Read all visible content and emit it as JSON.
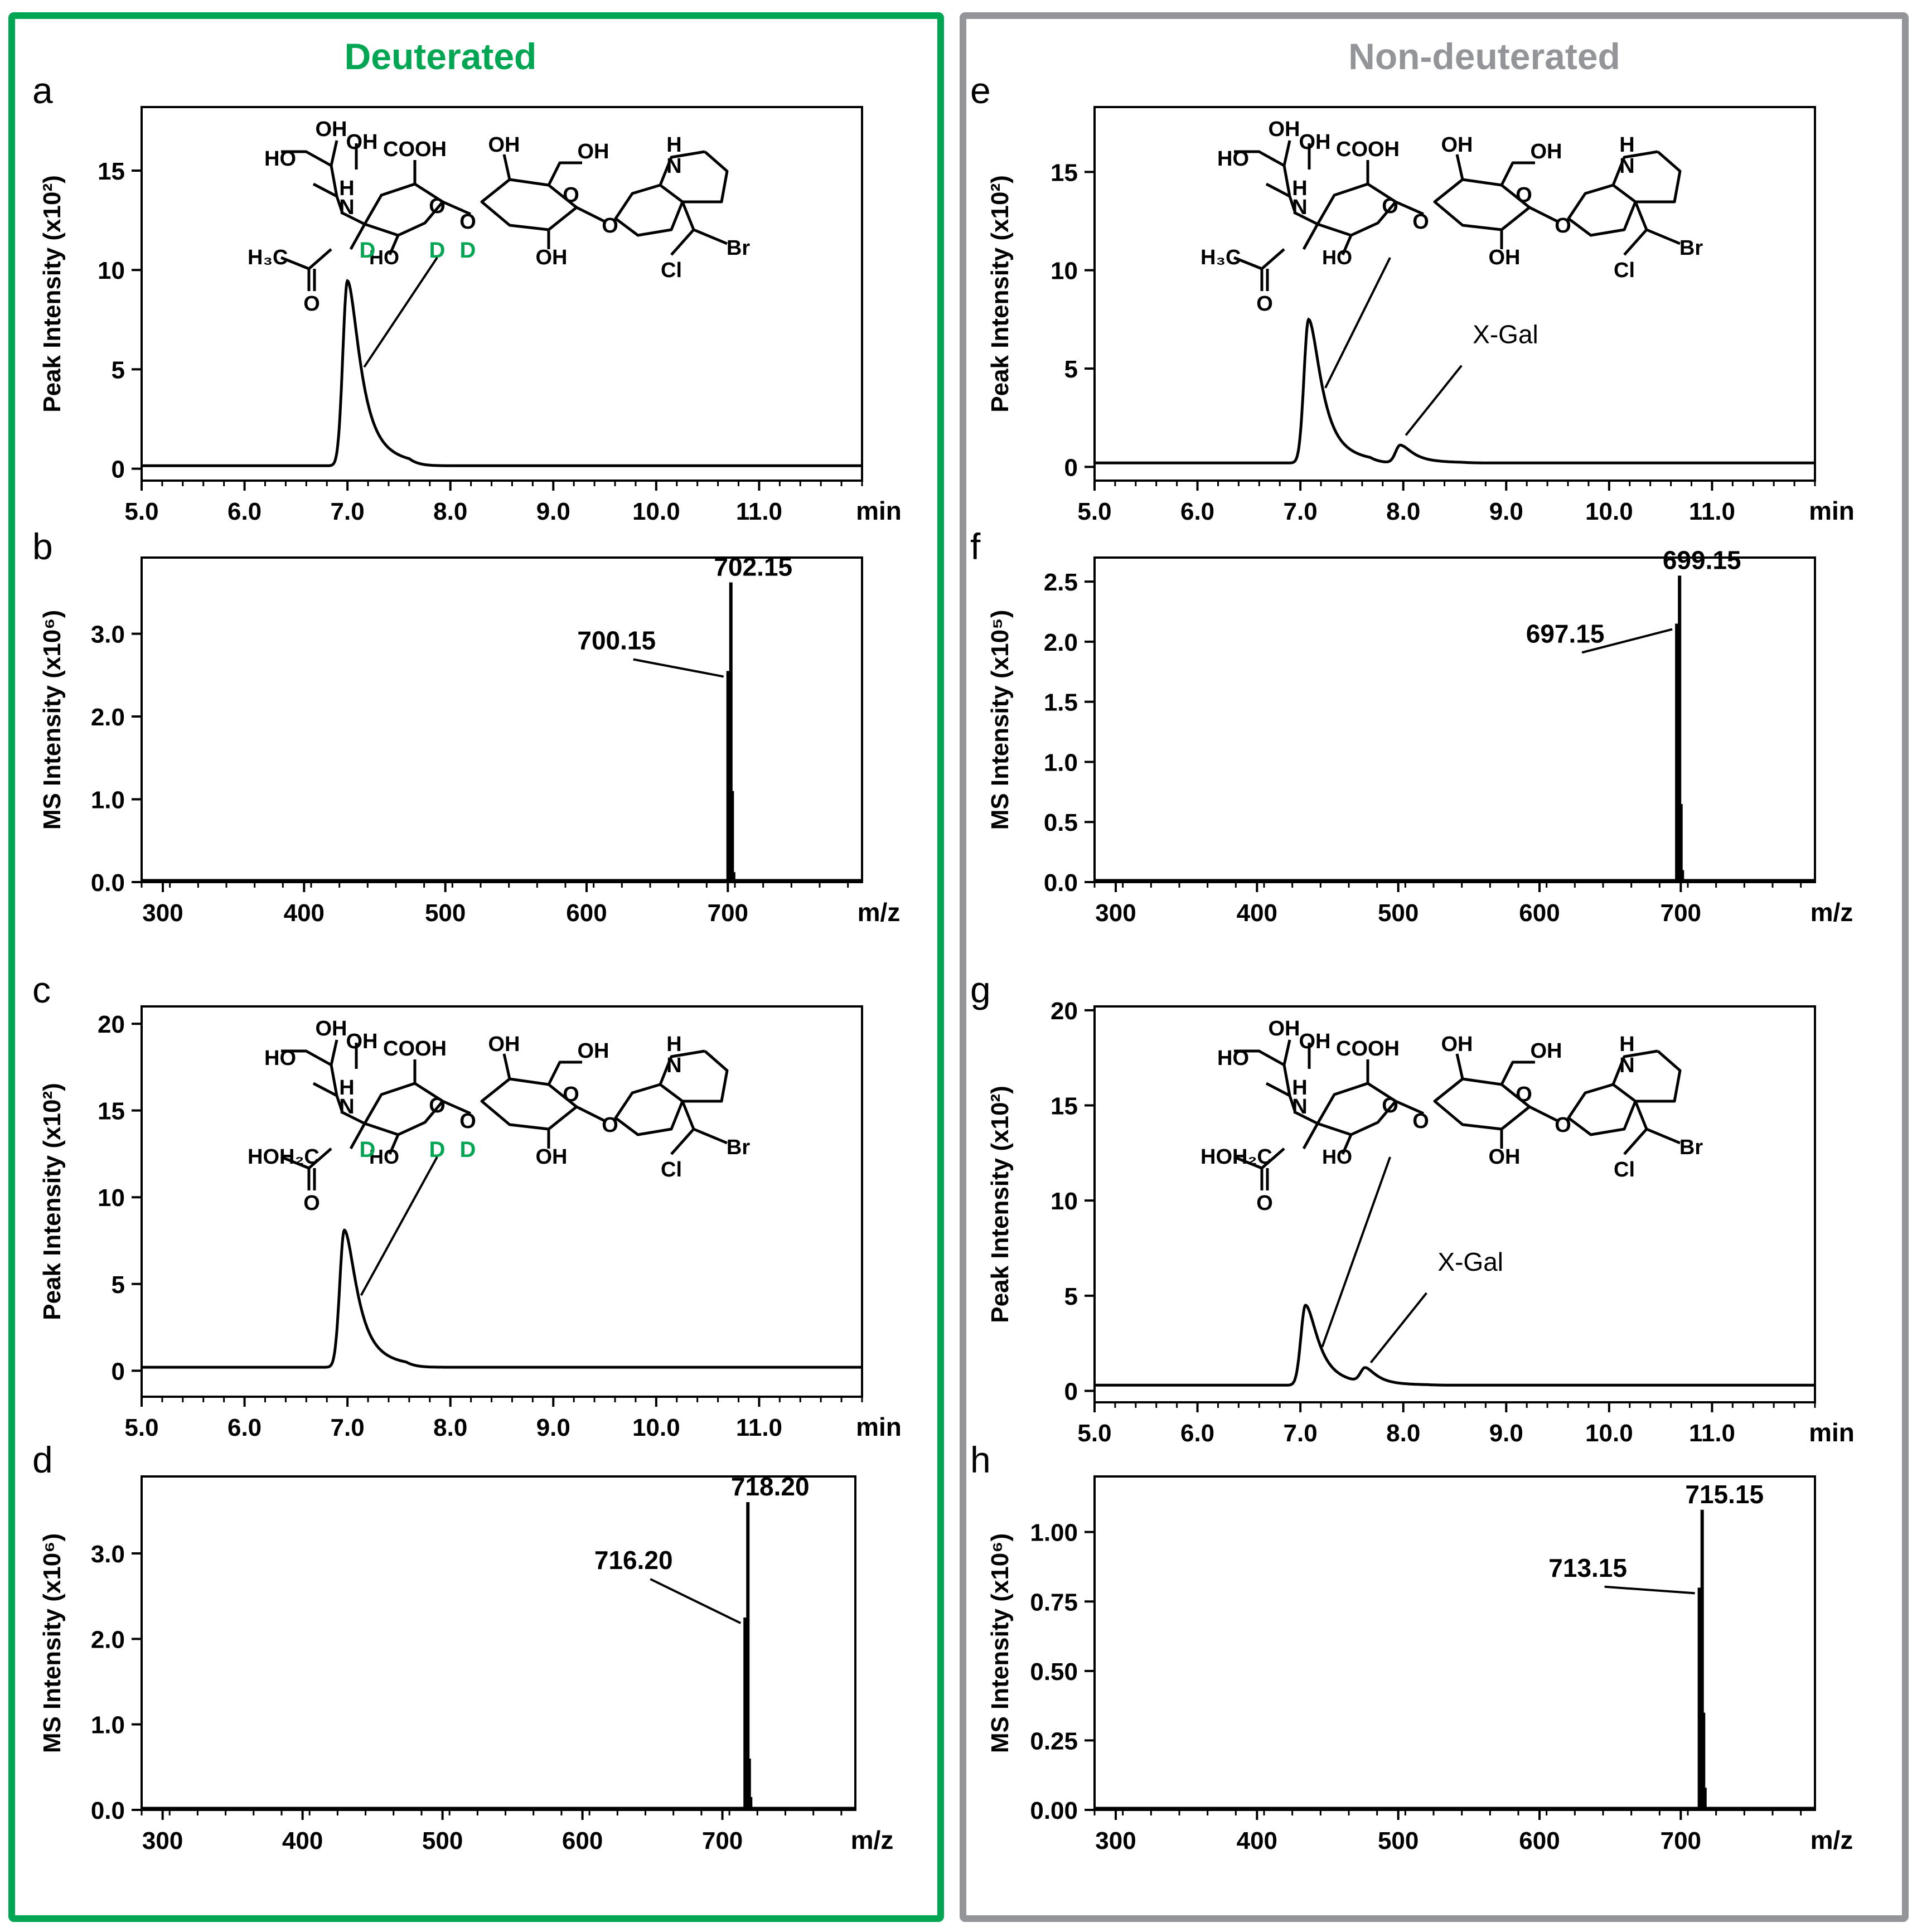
{
  "columns": [
    {
      "title": "Deuterated",
      "color": "#00a651"
    },
    {
      "title": "Non-deuterated",
      "color": "#939598"
    }
  ],
  "colors": {
    "green": "#00a651",
    "gray": "#939598",
    "ink": "#000000"
  },
  "x_gal_label": "X-Gal",
  "chart_data": [
    {
      "id": "a",
      "type": "line",
      "panel_label": "a",
      "xlabel": "min",
      "ylabel": "Peak Intensity (x10²)",
      "xlim": [
        5.0,
        12.0
      ],
      "xticks": [
        5.0,
        6.0,
        7.0,
        8.0,
        9.0,
        10.0,
        11.0
      ],
      "xtick_labels": [
        "5.0",
        "6.0",
        "7.0",
        "8.0",
        "9.0",
        "10.0",
        "11.0"
      ],
      "ylim": [
        -0.6,
        18.2
      ],
      "yticks": [
        0,
        5,
        10,
        15
      ],
      "ytick_labels": [
        "0",
        "5",
        "10",
        "15"
      ],
      "baseline": 0.15,
      "peaks": [
        {
          "rt": 7.0,
          "height": 9.3,
          "label": ""
        }
      ],
      "structure": {
        "deuterated": true,
        "acyl": "H₃C"
      }
    },
    {
      "id": "b",
      "type": "bar",
      "panel_label": "b",
      "xlabel": "m/z",
      "ylabel": "MS Intensity (x10⁶)",
      "xlim": [
        285,
        795
      ],
      "xticks": [
        300,
        400,
        500,
        600,
        700
      ],
      "xtick_labels": [
        "300",
        "400",
        "500",
        "600",
        "700"
      ],
      "ylim": [
        0,
        3.92
      ],
      "yticks": [
        0.0,
        1.0,
        2.0,
        3.0
      ],
      "ytick_labels": [
        "0.0",
        "1.0",
        "2.0",
        "3.0"
      ],
      "peaks": [
        {
          "mz": 700.15,
          "intensity": 2.55,
          "label": "700.15"
        },
        {
          "mz": 702.15,
          "intensity": 3.62,
          "label": "702.15"
        },
        {
          "mz": 703.15,
          "intensity": 1.1,
          "label": ""
        },
        {
          "mz": 704.15,
          "intensity": 0.12,
          "label": ""
        }
      ]
    },
    {
      "id": "c",
      "type": "line",
      "panel_label": "c",
      "xlabel": "min",
      "ylabel": "Peak Intensity (x10²)",
      "xlim": [
        5.0,
        12.0
      ],
      "xticks": [
        5.0,
        6.0,
        7.0,
        8.0,
        9.0,
        10.0,
        11.0
      ],
      "xtick_labels": [
        "5.0",
        "6.0",
        "7.0",
        "8.0",
        "9.0",
        "10.0",
        "11.0"
      ],
      "ylim": [
        -1.5,
        21.0
      ],
      "yticks": [
        0,
        5,
        10,
        15,
        20
      ],
      "ytick_labels": [
        "0",
        "5",
        "10",
        "15",
        "20"
      ],
      "baseline": 0.2,
      "peaks": [
        {
          "rt": 6.97,
          "height": 7.9,
          "label": ""
        }
      ],
      "structure": {
        "deuterated": true,
        "acyl": "HOH₂C"
      }
    },
    {
      "id": "d",
      "type": "bar",
      "panel_label": "d",
      "xlabel": "m/z",
      "ylabel": "MS Intensity (x10⁶)",
      "xlim": [
        285,
        795
      ],
      "xticks": [
        300,
        400,
        500,
        600,
        700
      ],
      "xtick_labels": [
        "300",
        "400",
        "500",
        "600",
        "700"
      ],
      "ylim": [
        0,
        3.9
      ],
      "yticks": [
        0.0,
        1.0,
        2.0,
        3.0
      ],
      "ytick_labels": [
        "0.0",
        "1.0",
        "2.0",
        "3.0"
      ],
      "peaks": [
        {
          "mz": 716.2,
          "intensity": 2.25,
          "label": "716.20"
        },
        {
          "mz": 718.2,
          "intensity": 3.6,
          "label": "718.20"
        },
        {
          "mz": 719.2,
          "intensity": 0.6,
          "label": ""
        },
        {
          "mz": 720.2,
          "intensity": 0.15,
          "label": ""
        }
      ]
    },
    {
      "id": "e",
      "type": "line",
      "panel_label": "e",
      "xlabel": "min",
      "ylabel": "Peak Intensity (x10²)",
      "xlim": [
        5.0,
        12.0
      ],
      "xticks": [
        5.0,
        6.0,
        7.0,
        8.0,
        9.0,
        10.0,
        11.0
      ],
      "xtick_labels": [
        "5.0",
        "6.0",
        "7.0",
        "8.0",
        "9.0",
        "10.0",
        "11.0"
      ],
      "ylim": [
        -0.7,
        18.3
      ],
      "yticks": [
        0,
        5,
        10,
        15
      ],
      "ytick_labels": [
        "0",
        "5",
        "10",
        "15"
      ],
      "baseline": 0.2,
      "peaks": [
        {
          "rt": 7.08,
          "height": 7.3,
          "label": ""
        },
        {
          "rt": 7.97,
          "height": 0.9,
          "label": "X-Gal"
        }
      ],
      "structure": {
        "deuterated": false,
        "acyl": "H₃C"
      }
    },
    {
      "id": "f",
      "type": "bar",
      "panel_label": "f",
      "xlabel": "m/z",
      "ylabel": "MS Intensity (x10⁵)",
      "xlim": [
        285,
        795
      ],
      "xticks": [
        300,
        400,
        500,
        600,
        700
      ],
      "xtick_labels": [
        "300",
        "400",
        "500",
        "600",
        "700"
      ],
      "ylim": [
        0,
        2.7
      ],
      "yticks": [
        0.0,
        0.5,
        1.0,
        1.5,
        2.0,
        2.5
      ],
      "ytick_labels": [
        "0.0",
        "0.5",
        "1.0",
        "1.5",
        "2.0",
        "2.5"
      ],
      "peaks": [
        {
          "mz": 697.15,
          "intensity": 2.15,
          "label": "697.15"
        },
        {
          "mz": 699.15,
          "intensity": 2.55,
          "label": "699.15"
        },
        {
          "mz": 700.15,
          "intensity": 0.65,
          "label": ""
        },
        {
          "mz": 701.15,
          "intensity": 0.1,
          "label": ""
        }
      ]
    },
    {
      "id": "g",
      "type": "line",
      "panel_label": "g",
      "xlabel": "min",
      "ylabel": "Peak Intensity (x10²)",
      "xlim": [
        5.0,
        12.0
      ],
      "xticks": [
        5.0,
        6.0,
        7.0,
        8.0,
        9.0,
        10.0,
        11.0
      ],
      "xtick_labels": [
        "5.0",
        "6.0",
        "7.0",
        "8.0",
        "9.0",
        "10.0",
        "11.0"
      ],
      "ylim": [
        -0.6,
        20.2
      ],
      "yticks": [
        0,
        5,
        10,
        15,
        20
      ],
      "ytick_labels": [
        "0",
        "5",
        "10",
        "15",
        "20"
      ],
      "baseline": 0.3,
      "peaks": [
        {
          "rt": 7.05,
          "height": 4.2,
          "label": ""
        },
        {
          "rt": 7.63,
          "height": 0.75,
          "label": "X-Gal"
        }
      ],
      "structure": {
        "deuterated": false,
        "acyl": "HOH₂C"
      }
    },
    {
      "id": "h",
      "type": "bar",
      "panel_label": "h",
      "xlabel": "m/z",
      "ylabel": "MS Intensity (x10⁶)",
      "xlim": [
        285,
        795
      ],
      "xticks": [
        300,
        400,
        500,
        600,
        700
      ],
      "xtick_labels": [
        "300",
        "400",
        "500",
        "600",
        "700"
      ],
      "ylim": [
        0,
        1.2
      ],
      "yticks": [
        0.0,
        0.25,
        0.5,
        0.75,
        1.0
      ],
      "ytick_labels": [
        "0.00",
        "0.25",
        "0.50",
        "0.75",
        "1.00"
      ],
      "peaks": [
        {
          "mz": 713.15,
          "intensity": 0.8,
          "label": "713.15"
        },
        {
          "mz": 715.15,
          "intensity": 1.08,
          "label": "715.15"
        },
        {
          "mz": 716.15,
          "intensity": 0.35,
          "label": ""
        },
        {
          "mz": 717.15,
          "intensity": 0.08,
          "label": ""
        }
      ]
    }
  ],
  "molecule_labels": {
    "oh": "OH",
    "ho": "HO",
    "cooh": "COOH",
    "nh": "H",
    "n": "N",
    "o": "O",
    "cl": "Cl",
    "br": "Br",
    "d": "D"
  }
}
